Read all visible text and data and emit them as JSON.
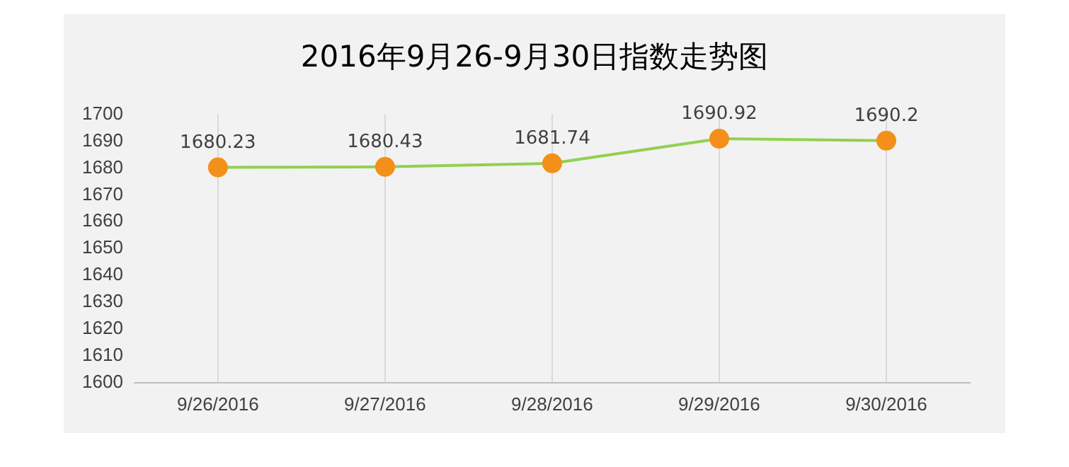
{
  "chart_data": {
    "type": "line",
    "title": "2016年9月26-9月30日指数走势图",
    "categories": [
      "9/26/2016",
      "9/27/2016",
      "9/28/2016",
      "9/29/2016",
      "9/30/2016"
    ],
    "series": [
      {
        "color": "#92d050",
        "colors": [
          "#f39019",
          "#f39019",
          "#f39019",
          "#f39019",
          "#f39019"
        ],
        "values": [
          1680.23,
          1680.43,
          1681.74,
          1690.92,
          1690.2
        ]
      }
    ],
    "ylim": [
      1600,
      1700
    ],
    "yticks": [
      1600,
      1610,
      1620,
      1630,
      1640,
      1650,
      1660,
      1670,
      1680,
      1690,
      1700
    ],
    "grid": "x",
    "legend": false,
    "marker": "circle",
    "line_style": "solid",
    "data_labels": true
  }
}
